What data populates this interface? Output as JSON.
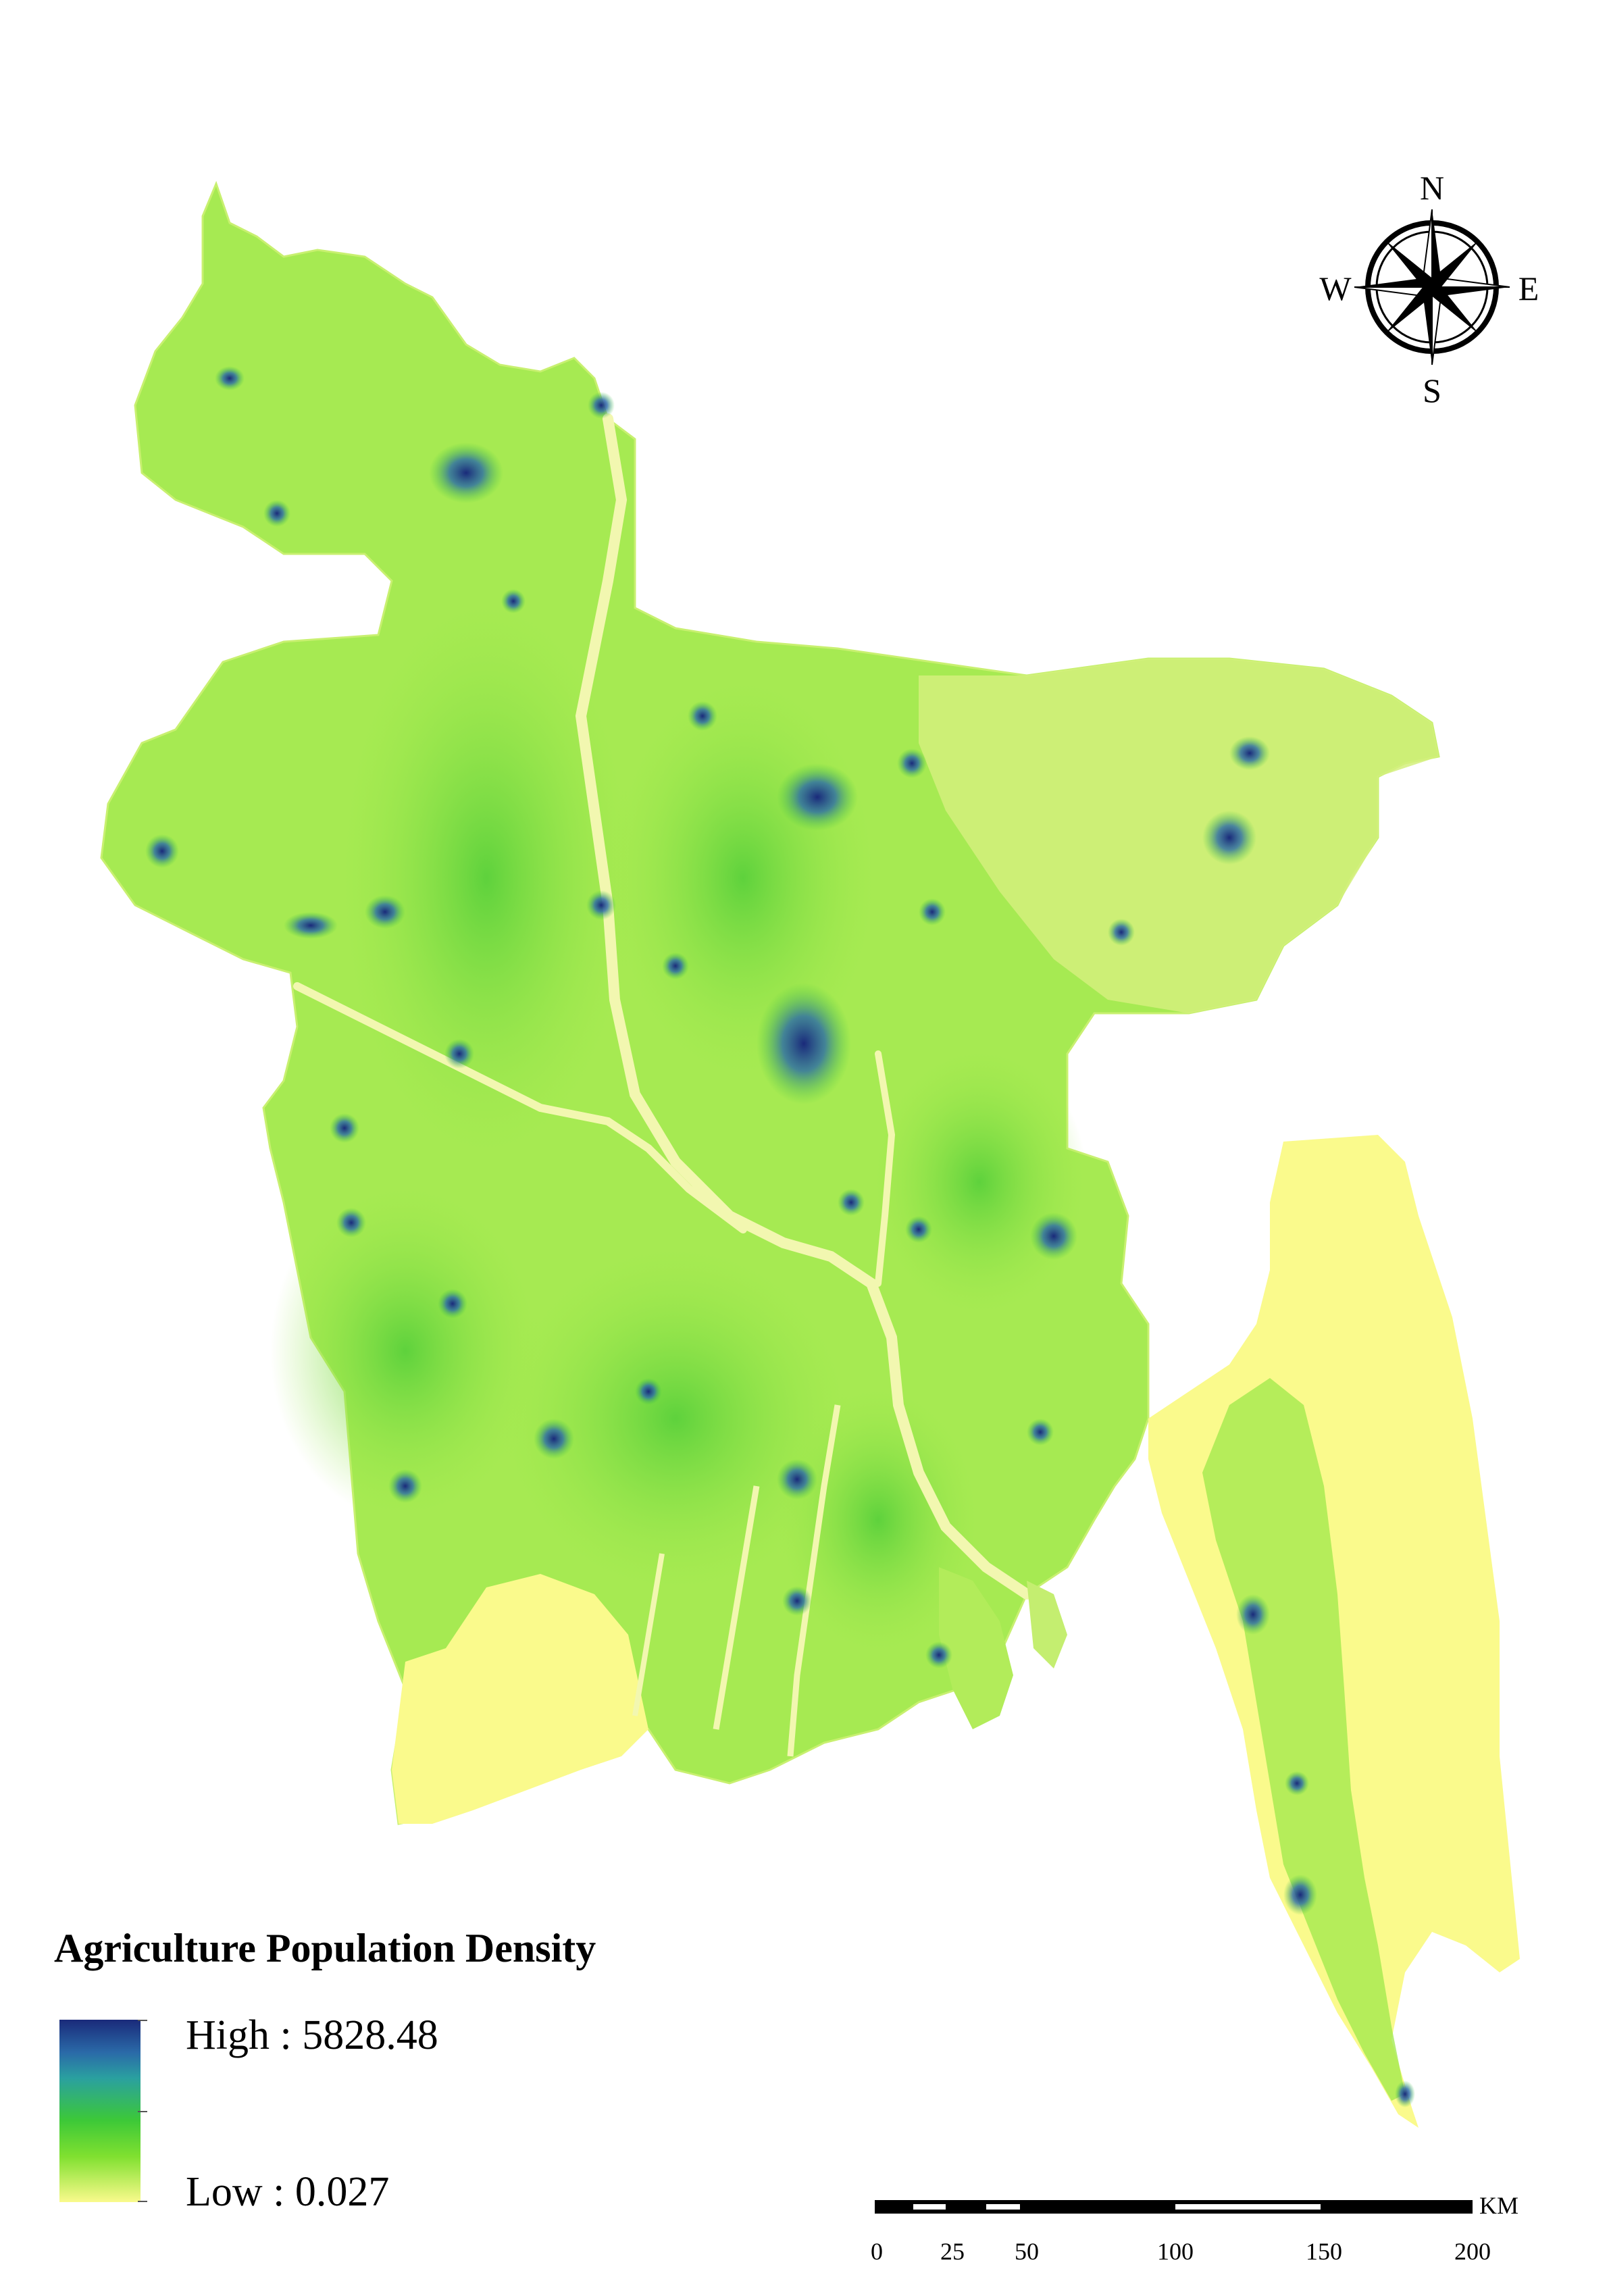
{
  "legend": {
    "title": "Agriculture Population Density",
    "high_label": "High : 5828.48",
    "low_label": "Low : 0.027",
    "colors": {
      "high": "#1a2a7a",
      "mid": "#3cc838",
      "low": "#fafa8c"
    }
  },
  "north_arrow": {
    "n": "N",
    "s": "S",
    "e": "E",
    "w": "W"
  },
  "scale_bar": {
    "unit": "KM",
    "labels": [
      "0",
      "25",
      "50",
      "100",
      "150",
      "200"
    ]
  },
  "colors": {
    "land_base": "#9ee84a",
    "land_light": "#dff48a",
    "coast_low": "#fafa8c",
    "hotspot": "#1a2a7a",
    "river": "#f2f7b0"
  }
}
